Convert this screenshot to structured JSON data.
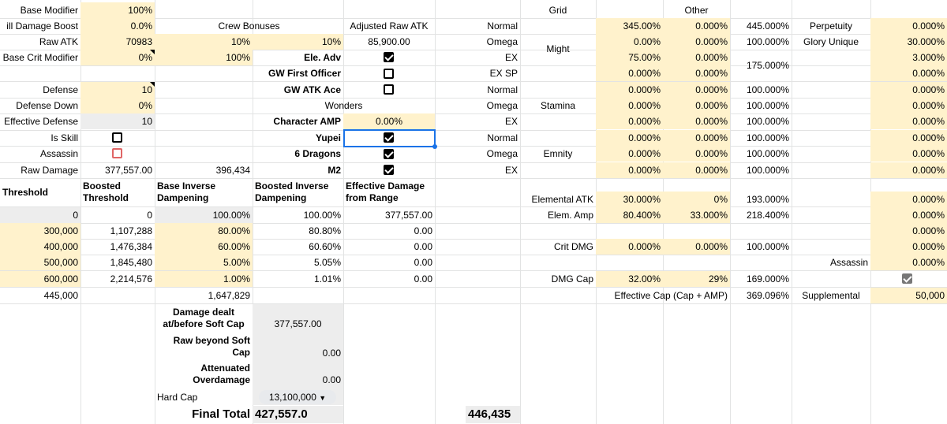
{
  "left": {
    "base_modifier": {
      "label": "Base Modifier",
      "value": "100%"
    },
    "skill_damage_boost": {
      "label": "ill Damage Boost",
      "value": "0.0%"
    },
    "raw_atk": {
      "label": "Raw ATK",
      "value": "70983"
    },
    "base_crit_modifier": {
      "label": "Base Crit Modifier",
      "value": "0%"
    },
    "defense": {
      "label": "Defense",
      "value": "10"
    },
    "defense_down": {
      "label": "Defense Down",
      "value": "0%"
    },
    "effective_defense": {
      "label": "Effective Defense",
      "value": "10"
    },
    "is_skill": {
      "label": "Is Skill",
      "checked": false
    },
    "assassin": {
      "label": "Assassin",
      "checked": false
    },
    "raw_damage": {
      "label": "Raw Damage",
      "value": "377,557.00",
      "extra": "396,434"
    }
  },
  "crew": {
    "header": "Crew Bonuses",
    "row1": [
      "10%",
      "10%"
    ],
    "row2": "100%",
    "adjusted_raw_atk": {
      "label": "Adjusted Raw ATK",
      "value": "85,900.00"
    }
  },
  "toggles": [
    {
      "label": "Ele. Adv",
      "checked": true
    },
    {
      "label": "GW First Officer",
      "checked": false
    },
    {
      "label": "GW ATK Ace",
      "checked": false
    }
  ],
  "wonders": {
    "header": "Wonders",
    "character_amp": {
      "label": "Character AMP",
      "value": "0.00%"
    },
    "items": [
      {
        "label": "Yupei",
        "checked": true
      },
      {
        "label": "6 Dragons",
        "checked": true
      },
      {
        "label": "M2",
        "checked": true
      }
    ]
  },
  "threshold_table": {
    "headers": [
      "Threshold",
      "Boosted Threshold",
      "Base Inverse Dampening",
      "Boosted Inverse Dampening",
      "Effective Damage from Range"
    ],
    "rows": [
      [
        "0",
        "0",
        "100.00%",
        "100.00%",
        "377,557.00"
      ],
      [
        "300,000",
        "1,107,288",
        "80.00%",
        "80.80%",
        "0.00"
      ],
      [
        "400,000",
        "1,476,384",
        "60.00%",
        "60.60%",
        "0.00"
      ],
      [
        "500,000",
        "1,845,480",
        "5.00%",
        "5.05%",
        "0.00"
      ],
      [
        "600,000",
        "2,214,576",
        "1.00%",
        "1.01%",
        "0.00"
      ]
    ],
    "footer_left": "445,000",
    "footer_mid": "1,647,829"
  },
  "soft_cap": {
    "damage_dealt_label": "Damage dealt at/before Soft Cap",
    "damage_dealt_value": "377,557.00",
    "raw_beyond_label": "Raw beyond Soft Cap",
    "raw_beyond_value": "0.00",
    "attenuated_label": "Attenuated Overdamage",
    "attenuated_value": "0.00",
    "hard_cap_label": "Hard Cap",
    "hard_cap_value": "13,100,000"
  },
  "final_total": {
    "label": "Final Total",
    "value": "427,557.0",
    "alt": "446,435"
  },
  "grid": {
    "header": "Grid",
    "other_header": "Other",
    "groups": [
      {
        "name": "Might",
        "rows": [
          {
            "type": "Normal",
            "v1": "345.00%",
            "v2": "0.000%",
            "v3": "445.000%"
          },
          {
            "type": "Omega",
            "v1": "0.00%",
            "v2": "0.000%",
            "v3": "100.000%"
          },
          {
            "type": "EX",
            "v1": "75.00%",
            "v2": "0.000%",
            "v3": "175.000%"
          },
          {
            "type": "EX SP",
            "v1": "0.000%",
            "v2": "0.000%",
            "v3": ""
          }
        ]
      },
      {
        "name": "Stamina",
        "rows": [
          {
            "type": "Normal",
            "v1": "0.000%",
            "v2": "0.000%",
            "v3": "100.000%"
          },
          {
            "type": "Omega",
            "v1": "0.000%",
            "v2": "0.000%",
            "v3": "100.000%"
          },
          {
            "type": "EX",
            "v1": "0.000%",
            "v2": "0.000%",
            "v3": "100.000%"
          }
        ]
      },
      {
        "name": "Emnity",
        "rows": [
          {
            "type": "Normal",
            "v1": "0.000%",
            "v2": "0.000%",
            "v3": "100.000%"
          },
          {
            "type": "Omega",
            "v1": "0.000%",
            "v2": "0.000%",
            "v3": "100.000%"
          },
          {
            "type": "EX",
            "v1": "0.000%",
            "v2": "0.000%",
            "v3": "100.000%"
          }
        ]
      }
    ],
    "elemental_atk": {
      "label": "Elemental ATK",
      "v1": "30.000%",
      "v2": "0%",
      "v3": "193.000%"
    },
    "elem_amp": {
      "label": "Elem. Amp",
      "v1": "80.400%",
      "v2": "33.000%",
      "v3": "218.400%"
    },
    "crit_dmg": {
      "label": "Crit DMG",
      "v1": "0.000%",
      "v2": "0.000%",
      "v3": "100.000%"
    },
    "dmg_cap": {
      "label": "DMG Cap",
      "v1": "32.00%",
      "v2": "29%",
      "v3": "169.000%"
    },
    "effective_cap": {
      "label": "Effective Cap (Cap + AMP)",
      "value": "369.096%"
    }
  },
  "right": {
    "perpetuity": {
      "label": "Perpetuity",
      "value": "0.000%"
    },
    "glory_unique": {
      "label": "Glory Unique",
      "value": "30.000%"
    },
    "column": [
      "3.000%",
      "0.000%",
      "0.000%",
      "0.000%",
      "0.000%",
      "0.000%",
      "0.000%",
      "0.000%",
      "0.000%",
      "0.000%",
      "0.000%",
      "0.000%",
      "0.000%"
    ],
    "assassin_label": "Assassin",
    "assassin_value": "0.000%",
    "supplemental": {
      "label": "Supplemental",
      "value": "50,000"
    }
  }
}
